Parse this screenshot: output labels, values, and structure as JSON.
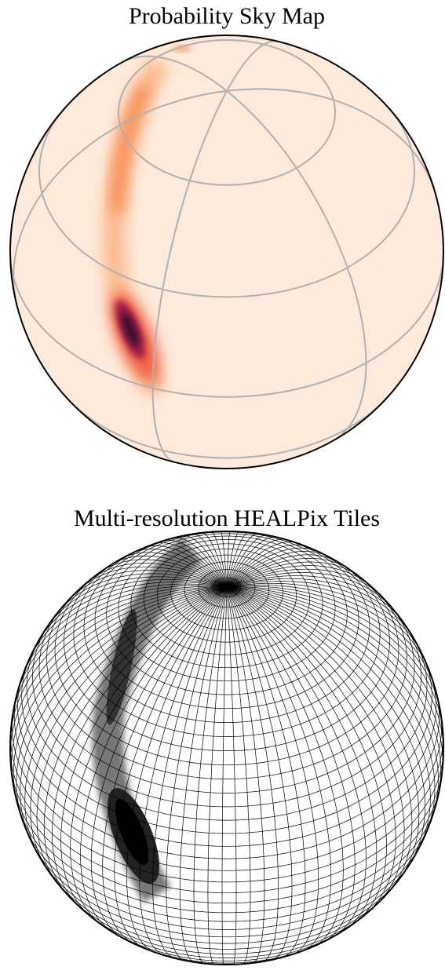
{
  "panels": [
    {
      "title": "Probability Sky Map"
    },
    {
      "title": "Multi-resolution HEALPix Tiles"
    }
  ]
}
